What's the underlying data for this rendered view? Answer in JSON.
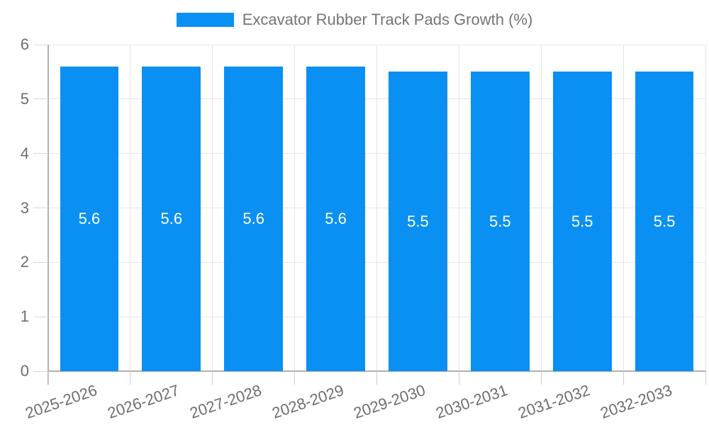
{
  "colors": {
    "bar": "#0a90f2",
    "bar_label": "#ffffff",
    "legend_text": "#757575",
    "tick_text": "#6e6e6e",
    "grid": "#e7e7e7",
    "axis": "#b0b0b0",
    "background": "#ffffff"
  },
  "legend": {
    "label": "Excavator Rubber Track Pads Growth (%)"
  },
  "chart_data": {
    "type": "bar",
    "title": "Excavator Rubber Track Pads Growth (%)",
    "categories": [
      "2025-2026",
      "2026-2027",
      "2027-2028",
      "2028-2029",
      "2029-2030",
      "2030-2031",
      "2031-2032",
      "2032-2033"
    ],
    "values": [
      5.6,
      5.6,
      5.6,
      5.6,
      5.5,
      5.5,
      5.5,
      5.5
    ],
    "series": [
      {
        "name": "Excavator Rubber Track Pads Growth (%)",
        "values": [
          5.6,
          5.6,
          5.6,
          5.6,
          5.5,
          5.5,
          5.5,
          5.5
        ]
      }
    ],
    "value_labels": [
      "5.6",
      "5.6",
      "5.6",
      "5.6",
      "5.5",
      "5.5",
      "5.5",
      "5.5"
    ],
    "xlabel": "",
    "ylabel": "",
    "ylim": [
      0,
      6
    ],
    "yticks": [
      0,
      1,
      2,
      3,
      4,
      5,
      6
    ],
    "grid": true,
    "legend_position": "top",
    "value_label_position": "inside-center",
    "xtick_rotation_deg": -19
  }
}
